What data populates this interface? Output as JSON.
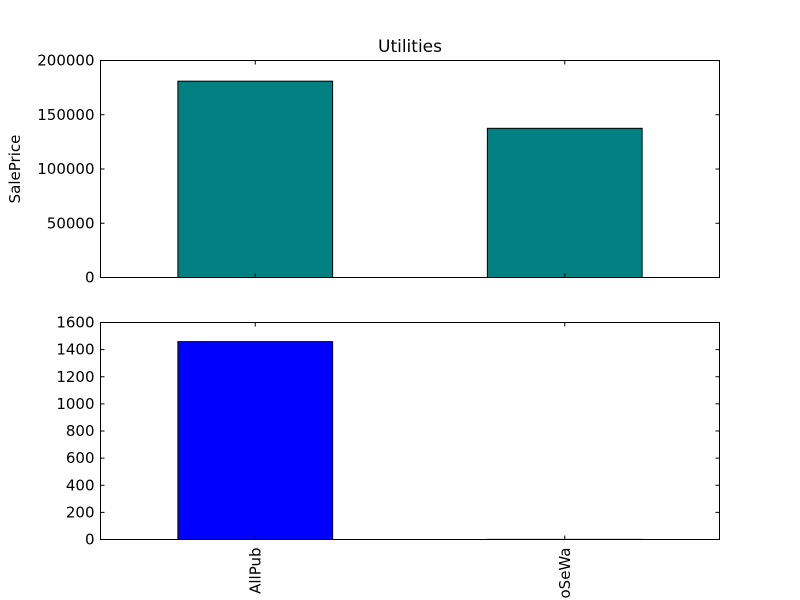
{
  "chart_data": [
    {
      "type": "bar",
      "title": "Utilities",
      "ylabel": "SalePrice",
      "xlabel": "",
      "categories": [
        "AllPub",
        "NoSeWa"
      ],
      "values": [
        180950,
        137500
      ],
      "ylim": [
        0,
        200000
      ],
      "yticks": [
        0,
        50000,
        100000,
        150000,
        200000
      ],
      "xtick_labels_visible": false,
      "bar_color": "#008080",
      "grid": false
    },
    {
      "type": "bar",
      "title": "",
      "ylabel": "",
      "xlabel": "",
      "categories": [
        "AllPub",
        "NoSeWa"
      ],
      "values": [
        1459,
        1
      ],
      "ylim": [
        0,
        1600
      ],
      "yticks": [
        0,
        200,
        400,
        600,
        800,
        1000,
        1200,
        1400,
        1600
      ],
      "xtick_labels_visible": true,
      "xtick_rotation": 90,
      "bar_color": "#0000ff",
      "grid": false
    }
  ]
}
